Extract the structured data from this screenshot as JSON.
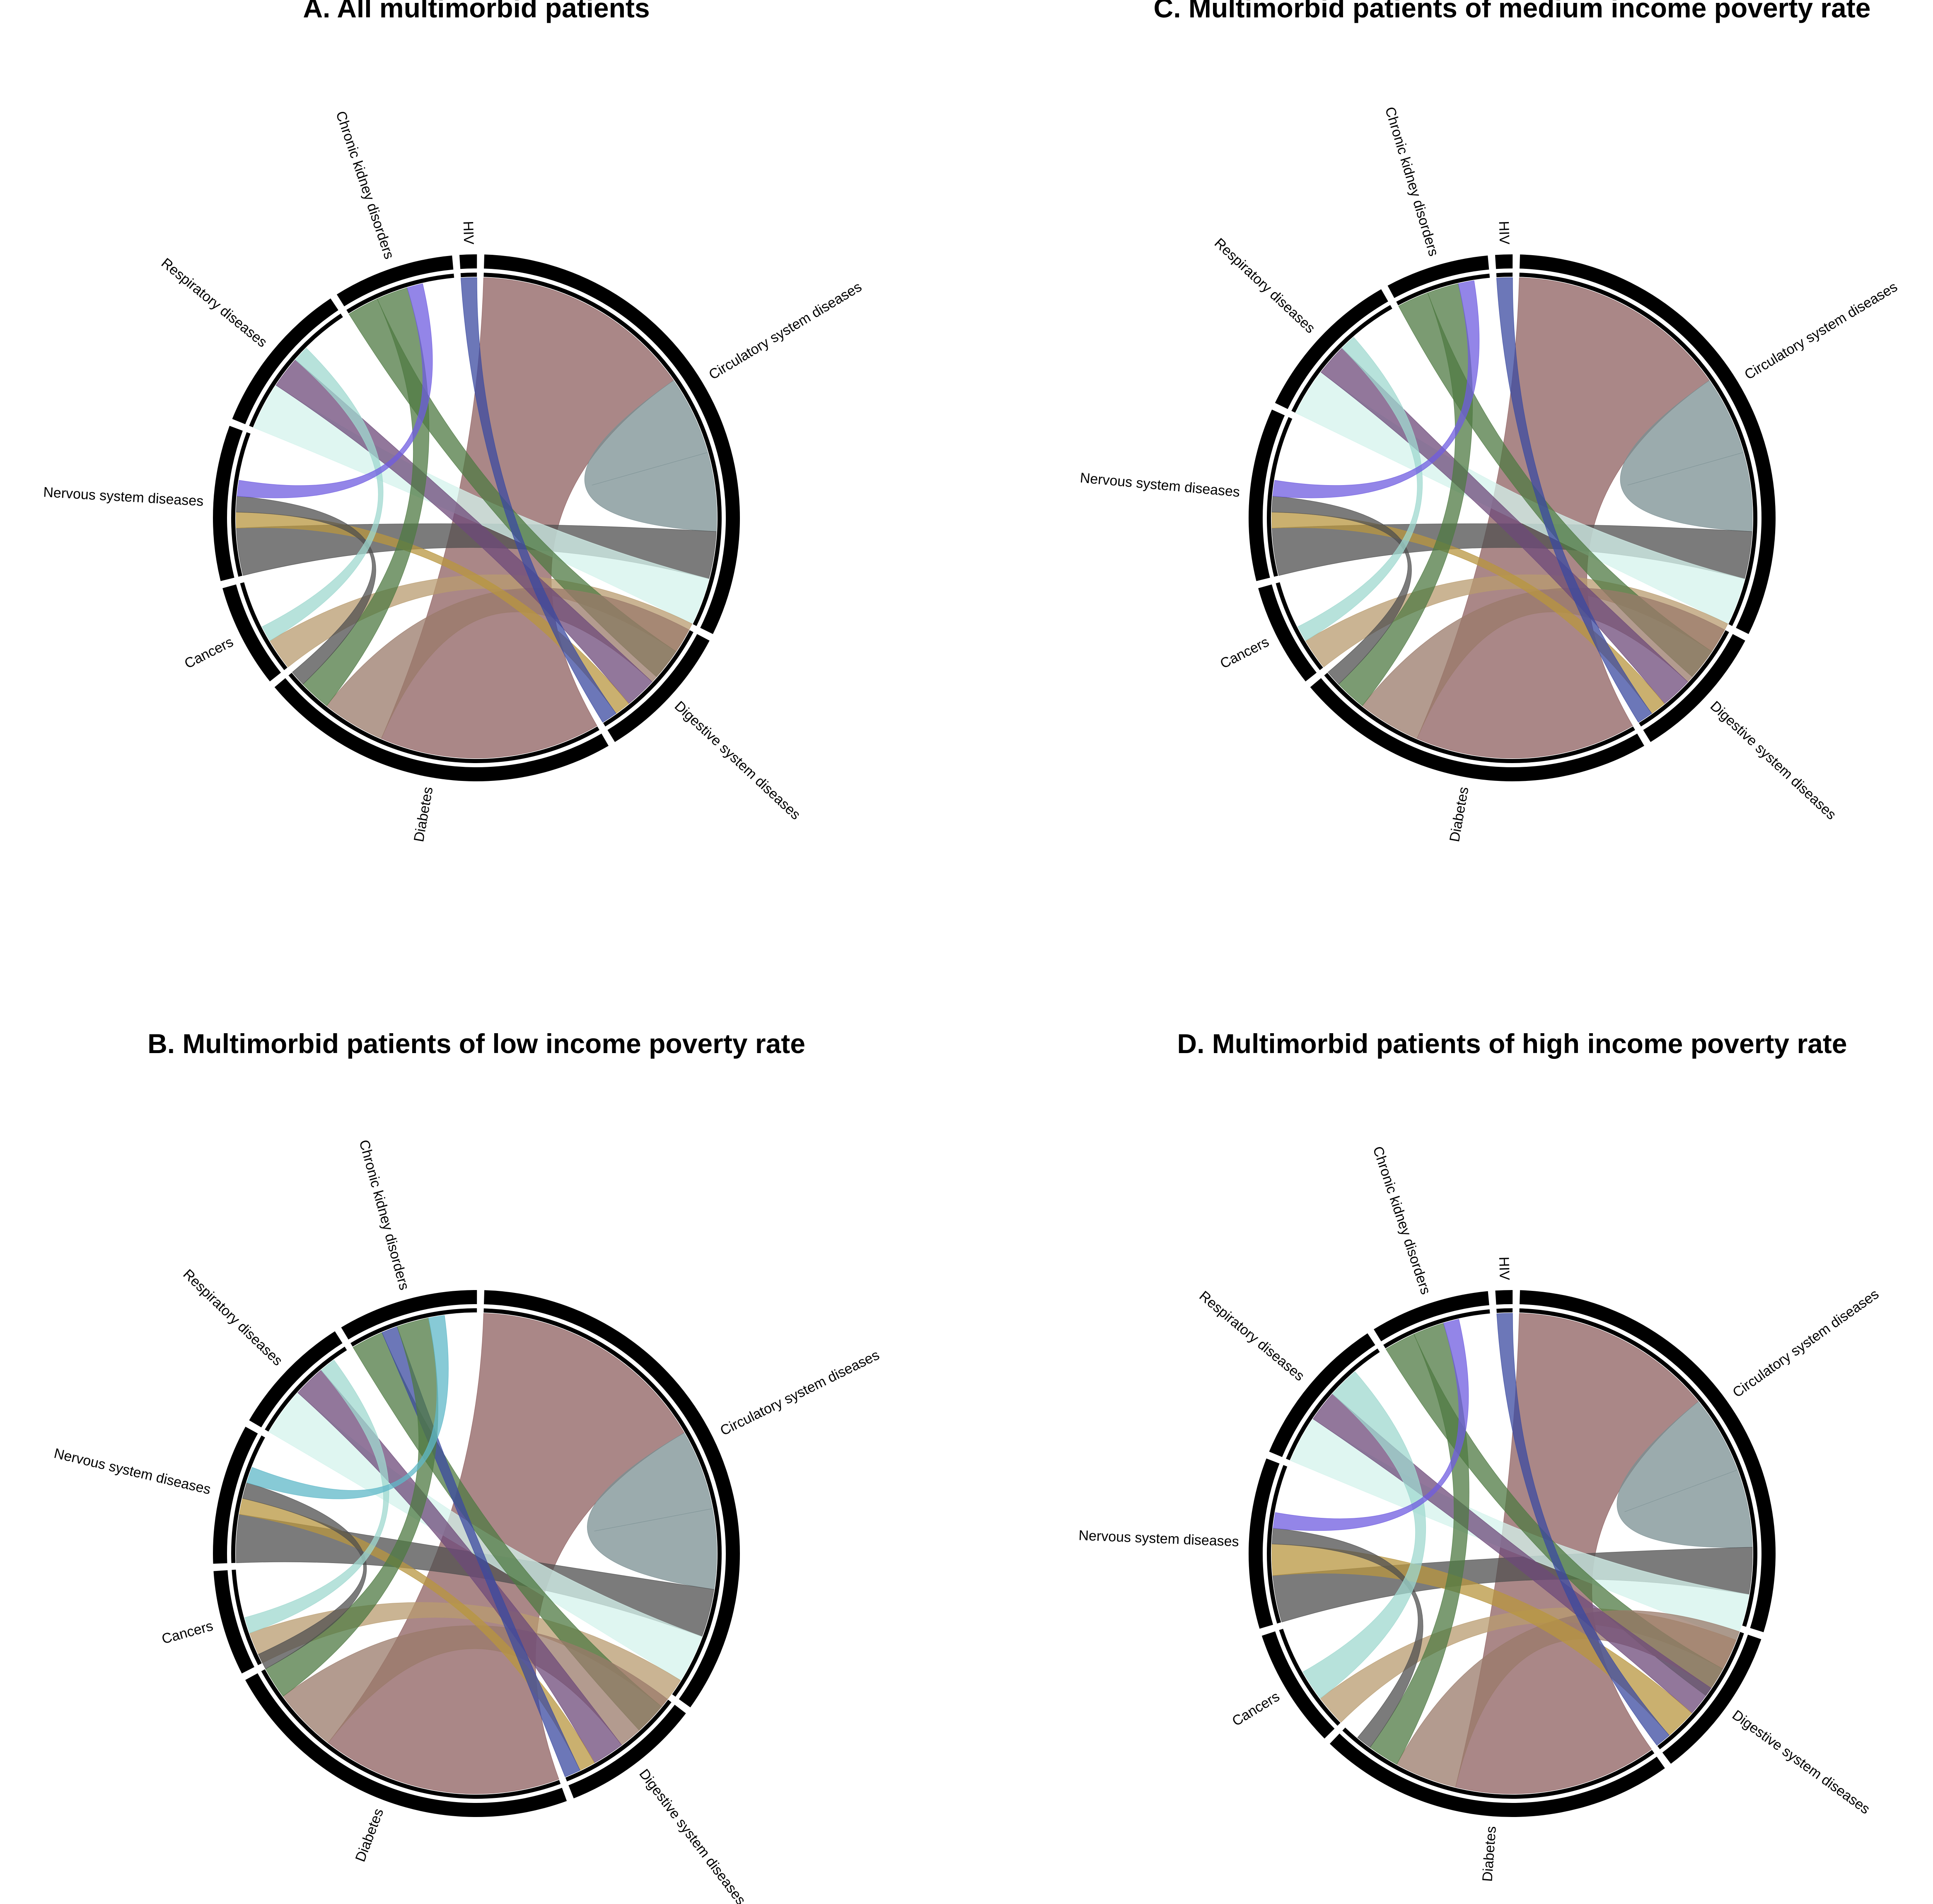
{
  "figure": {
    "panels": [
      {
        "title": "A. All multimorbid patients"
      },
      {
        "title": "C. Multimorbid patients of medium income poverty rate"
      },
      {
        "title": "B. Multimorbid patients of low income poverty rate"
      },
      {
        "title": "D. Multimorbid patients of high income poverty rate"
      }
    ]
  },
  "chart_data": [
    {
      "type": "chord",
      "title": "A. All multimorbid patients",
      "sectors": [
        {
          "name": "Circulatory system diseases",
          "value": 30,
          "color": "#7a8f92"
        },
        {
          "name": "Digestive system diseases",
          "value": 8,
          "color": "#9fd8cf"
        },
        {
          "name": "Diabetes",
          "value": 21,
          "color": "#8e5f5f"
        },
        {
          "name": "Cancers",
          "value": 6,
          "color": "#c9ddd9"
        },
        {
          "name": "Nervous system diseases",
          "value": 9,
          "color": "#4f4f4f"
        },
        {
          "name": "Respiratory diseases",
          "value": 9,
          "color": "#4f7a43"
        },
        {
          "name": "Chronic kidney disorders",
          "value": 7,
          "color": "#6f5ce0"
        },
        {
          "name": "HIV",
          "value": 1,
          "color": "#5fb8b8"
        }
      ],
      "links": [
        {
          "from": "Circulatory system diseases",
          "to": "Diabetes",
          "value": 14,
          "color": "#8e5f5f"
        },
        {
          "from": "Circulatory system diseases",
          "to": "Circulatory system diseases",
          "value": 5,
          "color": "#7a8f92"
        },
        {
          "from": "Circulatory system diseases",
          "to": "Nervous system diseases",
          "value": 3,
          "color": "#4f4f4f"
        },
        {
          "from": "Circulatory system diseases",
          "to": "Respiratory diseases",
          "value": 3,
          "color": "#d4f3ec"
        },
        {
          "from": "Circulatory system diseases",
          "to": "Cancers",
          "value": 2,
          "color": "#b89b6f"
        },
        {
          "from": "Circulatory system diseases",
          "to": "Chronic kidney disorders",
          "value": 2,
          "color": "#4f7a43"
        },
        {
          "from": "Digestive system diseases",
          "to": "Diabetes",
          "value": 4,
          "color": "#9a7a6a"
        },
        {
          "from": "Digestive system diseases",
          "to": "Respiratory diseases",
          "value": 2,
          "color": "#6e4a7a"
        },
        {
          "from": "Digestive system diseases",
          "to": "Nervous system diseases",
          "value": 1,
          "color": "#b8963f"
        },
        {
          "from": "Digestive system diseases",
          "to": "HIV",
          "value": 1,
          "color": "#3b4aa0"
        },
        {
          "from": "Diabetes",
          "to": "Chronic kidney disorders",
          "value": 2,
          "color": "#4f7a43"
        },
        {
          "from": "Diabetes",
          "to": "Nervous system diseases",
          "value": 1,
          "color": "#4f4f4f"
        },
        {
          "from": "Cancers",
          "to": "Respiratory diseases",
          "value": 1,
          "color": "#9fd8cf"
        },
        {
          "from": "Nervous system diseases",
          "to": "Chronic kidney disorders",
          "value": 1,
          "color": "#6f5ce0"
        }
      ]
    },
    {
      "type": "chord",
      "title": "C. Multimorbid patients of medium income poverty rate",
      "sectors": [
        {
          "name": "Circulatory system diseases",
          "value": 30,
          "color": "#7a8f92"
        },
        {
          "name": "Digestive system diseases",
          "value": 8,
          "color": "#9fd8cf"
        },
        {
          "name": "Diabetes",
          "value": 21,
          "color": "#8e5f5f"
        },
        {
          "name": "Cancers",
          "value": 6,
          "color": "#c9ddd9"
        },
        {
          "name": "Nervous system diseases",
          "value": 10,
          "color": "#4f4f4f"
        },
        {
          "name": "Respiratory diseases",
          "value": 9,
          "color": "#4f7a43"
        },
        {
          "name": "Chronic kidney disorders",
          "value": 6,
          "color": "#6f5ce0"
        },
        {
          "name": "HIV",
          "value": 1,
          "color": "#5fb8b8"
        }
      ],
      "links": [
        {
          "from": "Circulatory system diseases",
          "to": "Diabetes",
          "value": 14,
          "color": "#8e5f5f"
        },
        {
          "from": "Circulatory system diseases",
          "to": "Circulatory system diseases",
          "value": 5,
          "color": "#7a8f92"
        },
        {
          "from": "Circulatory system diseases",
          "to": "Nervous system diseases",
          "value": 3,
          "color": "#4f4f4f"
        },
        {
          "from": "Circulatory system diseases",
          "to": "Respiratory diseases",
          "value": 3,
          "color": "#d4f3ec"
        },
        {
          "from": "Circulatory system diseases",
          "to": "Cancers",
          "value": 2,
          "color": "#b89b6f"
        },
        {
          "from": "Circulatory system diseases",
          "to": "Chronic kidney disorders",
          "value": 2,
          "color": "#4f7a43"
        },
        {
          "from": "Digestive system diseases",
          "to": "Diabetes",
          "value": 4,
          "color": "#9a7a6a"
        },
        {
          "from": "Digestive system diseases",
          "to": "Respiratory diseases",
          "value": 2,
          "color": "#6e4a7a"
        },
        {
          "from": "Digestive system diseases",
          "to": "Nervous system diseases",
          "value": 1,
          "color": "#b8963f"
        },
        {
          "from": "Digestive system diseases",
          "to": "HIV",
          "value": 1,
          "color": "#3b4aa0"
        },
        {
          "from": "Diabetes",
          "to": "Chronic kidney disorders",
          "value": 2,
          "color": "#4f7a43"
        },
        {
          "from": "Diabetes",
          "to": "Nervous system diseases",
          "value": 1,
          "color": "#4f4f4f"
        },
        {
          "from": "Cancers",
          "to": "Respiratory diseases",
          "value": 1,
          "color": "#9fd8cf"
        },
        {
          "from": "Nervous system diseases",
          "to": "Chronic kidney disorders",
          "value": 1,
          "color": "#6f5ce0"
        }
      ]
    },
    {
      "type": "chord",
      "title": "B. Multimorbid patients of low income poverty rate",
      "sectors": [
        {
          "name": "Circulatory system diseases",
          "value": 32,
          "color": "#7a8f92"
        },
        {
          "name": "Digestive system diseases",
          "value": 8,
          "color": "#9fd8cf"
        },
        {
          "name": "Diabetes",
          "value": 21,
          "color": "#8e5f5f"
        },
        {
          "name": "Cancers",
          "value": 6,
          "color": "#c9ddd9"
        },
        {
          "name": "Nervous system diseases",
          "value": 8,
          "color": "#4f4f4f"
        },
        {
          "name": "Respiratory diseases",
          "value": 7,
          "color": "#4f7a43"
        },
        {
          "name": "Chronic kidney disorders",
          "value": 8,
          "color": "#5fb8c8"
        }
      ],
      "links": [
        {
          "from": "Circulatory system diseases",
          "to": "Diabetes",
          "value": 15,
          "color": "#8e5f5f"
        },
        {
          "from": "Circulatory system diseases",
          "to": "Circulatory system diseases",
          "value": 5,
          "color": "#7a8f92"
        },
        {
          "from": "Circulatory system diseases",
          "to": "Nervous system diseases",
          "value": 3,
          "color": "#4f4f4f"
        },
        {
          "from": "Circulatory system diseases",
          "to": "Respiratory diseases",
          "value": 3,
          "color": "#d4f3ec"
        },
        {
          "from": "Circulatory system diseases",
          "to": "Cancers",
          "value": 2,
          "color": "#b89b6f"
        },
        {
          "from": "Circulatory system diseases",
          "to": "Chronic kidney disorders",
          "value": 2,
          "color": "#4f7a43"
        },
        {
          "from": "Digestive system diseases",
          "to": "Diabetes",
          "value": 4,
          "color": "#9a7a6a"
        },
        {
          "from": "Digestive system diseases",
          "to": "Respiratory diseases",
          "value": 2,
          "color": "#6e4a7a"
        },
        {
          "from": "Digestive system diseases",
          "to": "Nervous system diseases",
          "value": 1,
          "color": "#b8963f"
        },
        {
          "from": "Digestive system diseases",
          "to": "Chronic kidney disorders",
          "value": 1,
          "color": "#3b4aa0"
        },
        {
          "from": "Diabetes",
          "to": "Chronic kidney disorders",
          "value": 2,
          "color": "#4f7a43"
        },
        {
          "from": "Diabetes",
          "to": "Nervous system diseases",
          "value": 1,
          "color": "#4f4f4f"
        },
        {
          "from": "Cancers",
          "to": "Respiratory diseases",
          "value": 1,
          "color": "#9fd8cf"
        },
        {
          "from": "Nervous system diseases",
          "to": "Chronic kidney disorders",
          "value": 1,
          "color": "#5fb8c8"
        }
      ]
    },
    {
      "type": "chord",
      "title": "D. Multimorbid patients of high income poverty rate",
      "sectors": [
        {
          "name": "Circulatory system diseases",
          "value": 28,
          "color": "#7a8f92"
        },
        {
          "name": "Digestive system diseases",
          "value": 9,
          "color": "#9fd8cf"
        },
        {
          "name": "Diabetes",
          "value": 21,
          "color": "#8e5f5f"
        },
        {
          "name": "Cancers",
          "value": 7,
          "color": "#c9ddd9"
        },
        {
          "name": "Nervous system diseases",
          "value": 10,
          "color": "#4f4f4f"
        },
        {
          "name": "Respiratory diseases",
          "value": 9,
          "color": "#4f7a43"
        },
        {
          "name": "Chronic kidney disorders",
          "value": 7,
          "color": "#6f5ce0"
        },
        {
          "name": "HIV",
          "value": 1,
          "color": "#5fb8b8"
        }
      ],
      "links": [
        {
          "from": "Circulatory system diseases",
          "to": "Diabetes",
          "value": 13,
          "color": "#8e5f5f"
        },
        {
          "from": "Circulatory system diseases",
          "to": "Circulatory system diseases",
          "value": 5,
          "color": "#7a8f92"
        },
        {
          "from": "Circulatory system diseases",
          "to": "Nervous system diseases",
          "value": 3,
          "color": "#4f4f4f"
        },
        {
          "from": "Circulatory system diseases",
          "to": "Respiratory diseases",
          "value": 3,
          "color": "#d4f3ec"
        },
        {
          "from": "Circulatory system diseases",
          "to": "Cancers",
          "value": 2,
          "color": "#b89b6f"
        },
        {
          "from": "Circulatory system diseases",
          "to": "Chronic kidney disorders",
          "value": 2,
          "color": "#4f7a43"
        },
        {
          "from": "Digestive system diseases",
          "to": "Diabetes",
          "value": 4,
          "color": "#9a7a6a"
        },
        {
          "from": "Digestive system diseases",
          "to": "Respiratory diseases",
          "value": 2,
          "color": "#6e4a7a"
        },
        {
          "from": "Digestive system diseases",
          "to": "Nervous system diseases",
          "value": 2,
          "color": "#b8963f"
        },
        {
          "from": "Digestive system diseases",
          "to": "HIV",
          "value": 1,
          "color": "#3b4aa0"
        },
        {
          "from": "Diabetes",
          "to": "Chronic kidney disorders",
          "value": 2,
          "color": "#4f7a43"
        },
        {
          "from": "Diabetes",
          "to": "Nervous system diseases",
          "value": 1,
          "color": "#4f4f4f"
        },
        {
          "from": "Cancers",
          "to": "Respiratory diseases",
          "value": 2,
          "color": "#9fd8cf"
        },
        {
          "from": "Nervous system diseases",
          "to": "Chronic kidney disorders",
          "value": 1,
          "color": "#6f5ce0"
        }
      ]
    }
  ]
}
